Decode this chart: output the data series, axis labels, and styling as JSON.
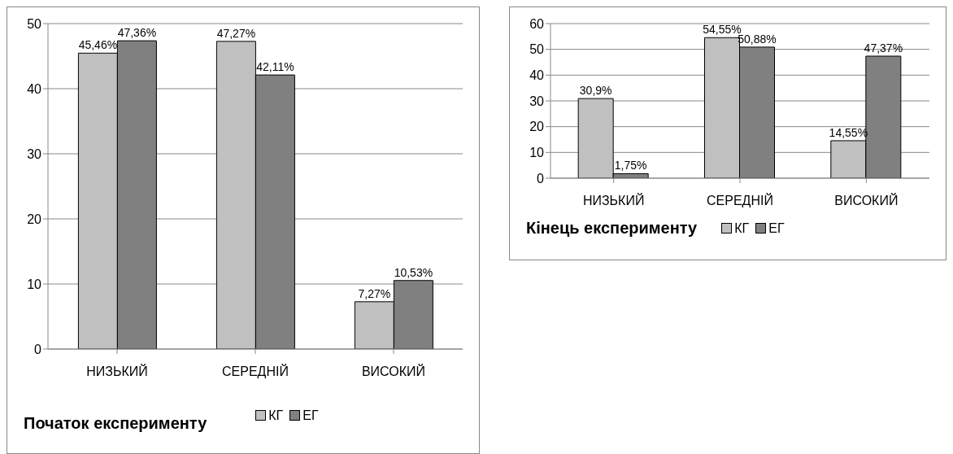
{
  "chart_data": [
    {
      "type": "bar",
      "title": "Початок експерименту",
      "categories": [
        "НИЗЬКИЙ",
        "СЕРЕДНІЙ",
        "ВИСОКИЙ"
      ],
      "series": [
        {
          "name": "КГ",
          "color": "#c0c0c0",
          "values": [
            45.46,
            47.27,
            7.27
          ],
          "value_labels": [
            "45,46%",
            "47,27%",
            "7,27%"
          ]
        },
        {
          "name": "ЕГ",
          "color": "#808080",
          "values": [
            47.36,
            42.11,
            10.53
          ],
          "value_labels": [
            "47,36%",
            "42,11%",
            "10,53%"
          ]
        }
      ],
      "ylim": [
        0,
        50
      ],
      "yticks": [
        0,
        10,
        20,
        30,
        40,
        50
      ],
      "grid": "y",
      "legend": "bottom right"
    },
    {
      "type": "bar",
      "title": "Кінець експерименту",
      "categories": [
        "НИЗЬКИЙ",
        "СЕРЕДНІЙ",
        "ВИСОКИЙ"
      ],
      "series": [
        {
          "name": "КГ",
          "color": "#c0c0c0",
          "values": [
            30.9,
            54.55,
            14.55
          ],
          "value_labels": [
            "30,9%",
            "54,55%",
            "14,55%"
          ]
        },
        {
          "name": "ЕГ",
          "color": "#808080",
          "values": [
            1.75,
            50.88,
            47.37
          ],
          "value_labels": [
            "1,75%",
            "50,88%",
            "47,37%"
          ]
        }
      ],
      "ylim": [
        0,
        60
      ],
      "yticks": [
        0,
        10,
        20,
        30,
        40,
        50,
        60
      ],
      "grid": "y",
      "legend": "bottom"
    }
  ]
}
